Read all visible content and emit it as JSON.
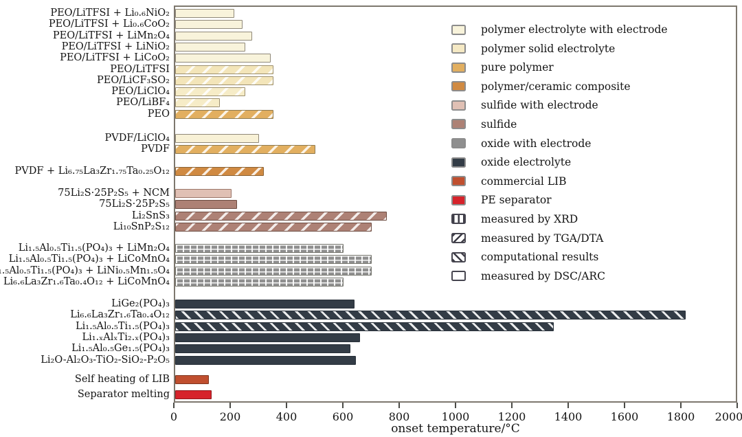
{
  "chart_data": {
    "type": "bar",
    "orientation": "horizontal",
    "title": "",
    "xlabel": "onset temperature/°C",
    "xlim": [
      0,
      2000
    ],
    "xticks": [
      "0",
      "200",
      "400",
      "600",
      "800",
      "1000",
      "1200",
      "1400",
      "1600",
      "1800",
      "2000"
    ],
    "grid": false,
    "legend_position": "upper right",
    "pattern_meaning": {
      "dsc": "measured by DSC/ARC",
      "xrd": "measured by XRD",
      "tga": "measured by TGA/DTA",
      "comp": "computational results"
    },
    "legend": [
      {
        "label": "polymer electrolyte with electrode",
        "type": "color",
        "color": "#F8F3DB"
      },
      {
        "label": "polymer solid electrolyte",
        "type": "color",
        "color": "#F5E9C4"
      },
      {
        "label": "pure polymer",
        "type": "color",
        "color": "#E2AF60"
      },
      {
        "label": "polymer/ceramic composite",
        "type": "color",
        "color": "#D08A42"
      },
      {
        "label": "sulfide with electrode",
        "type": "color",
        "color": "#E0C0B4"
      },
      {
        "label": "sulfide",
        "type": "color",
        "color": "#AD8175"
      },
      {
        "label": "oxide with electrode",
        "type": "color",
        "color": "#8F8F8F"
      },
      {
        "label": "oxide electrolyte",
        "type": "color",
        "color": "#333C46"
      },
      {
        "label": "commercial LIB",
        "type": "color",
        "color": "#C04F2F"
      },
      {
        "label": "PE separator",
        "type": "color",
        "color": "#D6232B"
      },
      {
        "label": "measured by XRD",
        "type": "pattern",
        "pattern": "xrd"
      },
      {
        "label": "measured by TGA/DTA",
        "type": "pattern",
        "pattern": "tga"
      },
      {
        "label": "computational results",
        "type": "pattern",
        "pattern": "comp"
      },
      {
        "label": "measured by DSC/ARC",
        "type": "pattern",
        "pattern": "dsc"
      }
    ],
    "bars": [
      {
        "label": "PEO/LiTFSI + Li₀.₆NiO₂",
        "value": 210,
        "category": "polymer electrolyte with electrode",
        "pattern": "dsc",
        "fill": "#F8F3DB",
        "border": "#8F8878",
        "group": 0
      },
      {
        "label": "PEO/LiTFSI + Li₀.₆CoO₂",
        "value": 240,
        "category": "polymer electrolyte with electrode",
        "pattern": "dsc",
        "fill": "#F8F3DB",
        "border": "#8F8878",
        "group": 0
      },
      {
        "label": "PEO/LiTFSI + LiMn₂O₄",
        "value": 275,
        "category": "polymer electrolyte with electrode",
        "pattern": "dsc",
        "fill": "#F8F3DB",
        "border": "#8F8878",
        "group": 0
      },
      {
        "label": "PEO/LiTFSI + LiNiO₂",
        "value": 250,
        "category": "polymer electrolyte with electrode",
        "pattern": "dsc",
        "fill": "#F8F3DB",
        "border": "#8F8878",
        "group": 0
      },
      {
        "label": "PEO/LiTFSI + LiCoO₂",
        "value": 340,
        "category": "polymer electrolyte with electrode",
        "pattern": "dsc",
        "fill": "#F8F3DB",
        "border": "#8F8878",
        "group": 0
      },
      {
        "label": "PEO/LiTFSI",
        "value": 350,
        "category": "polymer solid electrolyte",
        "pattern": "tga",
        "fill": "#F3E5B9",
        "border": "#9C8F6E",
        "group": 0
      },
      {
        "label": "PEO/LiCF₃SO₂",
        "value": 350,
        "category": "polymer solid electrolyte",
        "pattern": "tga",
        "fill": "#F3E5B9",
        "border": "#9C8F6E",
        "group": 0
      },
      {
        "label": "PEO/LiClO₄",
        "value": 250,
        "category": "polymer solid electrolyte",
        "pattern": "tga",
        "fill": "#F6ECC7",
        "border": "#9C8F6E",
        "group": 0
      },
      {
        "label": "PEO/LiBF₄",
        "value": 160,
        "category": "polymer solid electrolyte",
        "pattern": "tga",
        "fill": "#F6ECC7",
        "border": "#9C8F6E",
        "group": 0
      },
      {
        "label": "PEO",
        "value": 350,
        "category": "pure polymer",
        "pattern": "tga",
        "fill": "#E2AF60",
        "border": "#8D7A50",
        "group": 0
      },
      {
        "label": "PVDF/LiClO₄",
        "value": 300,
        "category": "polymer solid electrolyte",
        "pattern": "dsc",
        "fill": "#F8F1D6",
        "border": "#8F8878",
        "group": 1
      },
      {
        "label": "PVDF",
        "value": 500,
        "category": "pure polymer",
        "pattern": "tga",
        "fill": "#E2AF60",
        "border": "#8D7A50",
        "group": 1
      },
      {
        "label": "PVDF + Li₆.₇₅La₃Zr₁.₇₅Ta₀.₂₅O₁₂",
        "value": 315,
        "category": "polymer/ceramic composite",
        "pattern": "tga",
        "fill": "#D08A42",
        "border": "#8A6234",
        "group": 2
      },
      {
        "label": "75Li₂S·25P₂S₅ + NCM",
        "value": 200,
        "category": "sulfide with electrode",
        "pattern": "dsc",
        "fill": "#E0C0B4",
        "border": "#9B7668",
        "group": 3
      },
      {
        "label": "75Li₂S·25P₂S₅",
        "value": 220,
        "category": "sulfide",
        "pattern": "dsc",
        "fill": "#AD8175",
        "border": "#6D4C42",
        "group": 3
      },
      {
        "label": "Li₂SnS₃",
        "value": 755,
        "category": "sulfide",
        "pattern": "tga",
        "fill": "#AD8175",
        "border": "#6D4C42",
        "group": 3
      },
      {
        "label": "Li₁₀SnP₂S₁₂",
        "value": 700,
        "category": "sulfide",
        "pattern": "tga",
        "fill": "#AD8175",
        "border": "#6D4C42",
        "group": 3
      },
      {
        "label": "Li₁.₅Al₀.₅Ti₁.₅(PO₄)₃ + LiMn₂O₄",
        "value": 600,
        "category": "oxide with electrode",
        "pattern": "xrd",
        "fill": "#8F8F8F",
        "border": "#74746C",
        "group": 4
      },
      {
        "label": "Li₁.₅Al₀.₅Ti₁.₅(PO₄)₃ + LiCoMnO₄",
        "value": 700,
        "category": "oxide with electrode",
        "pattern": "xrd",
        "fill": "#8F8F8F",
        "border": "#74746C",
        "group": 4
      },
      {
        "label": "Li₁.₅Al₀.₅Ti₁.₅(PO₄)₃ + LiNi₀.₅Mn₁.₅O₄",
        "value": 700,
        "category": "oxide with electrode",
        "pattern": "xrd",
        "fill": "#8F8F8F",
        "border": "#74746C",
        "group": 4
      },
      {
        "label": "Li₆.₆La₃Zr₁.₆Ta₀.₄O₁₂ + LiCoMnO₄",
        "value": 600,
        "category": "oxide with electrode",
        "pattern": "xrd",
        "fill": "#8F8F8F",
        "border": "#74746C",
        "group": 4
      },
      {
        "label": "LiGe₂(PO₄)₃",
        "value": 640,
        "category": "oxide electrolyte",
        "pattern": "dsc",
        "fill": "#333C46",
        "border": "#272F38",
        "group": 5
      },
      {
        "label": "Li₆.₆La₃Zr₁.₆Ta₀.₄O₁₂",
        "value": 1820,
        "category": "oxide electrolyte",
        "pattern": "comp",
        "fill": "#333C46",
        "border": "#272F38",
        "group": 5
      },
      {
        "label": "Li₁.₅Al₀.₅Ti₁.₅(PO₄)₃",
        "value": 1350,
        "category": "oxide electrolyte",
        "pattern": "comp",
        "fill": "#333C46",
        "border": "#272F38",
        "group": 5
      },
      {
        "label": "Li₁.ₓAlₓTi₂.ₓ(PO₄)₃",
        "value": 660,
        "category": "oxide electrolyte",
        "pattern": "dsc",
        "fill": "#333C46",
        "border": "#272F38",
        "group": 5
      },
      {
        "label": "Li₁.₅Al₀.₅Ge₁.₅(PO₄)₃",
        "value": 625,
        "category": "oxide electrolyte",
        "pattern": "dsc",
        "fill": "#333C46",
        "border": "#272F38",
        "group": 5
      },
      {
        "label": "Li₂O-Al₂O₃-TiO₂-SiO₂-P₂O₅",
        "value": 645,
        "category": "oxide electrolyte",
        "pattern": "dsc",
        "fill": "#333C46",
        "border": "#272F38",
        "group": 5
      },
      {
        "label": "Self heating of LIB",
        "value": 120,
        "category": "commercial LIB",
        "pattern": "dsc",
        "fill": "#C04F2F",
        "border": "#7E3620",
        "group": 6
      },
      {
        "label": "Separator melting",
        "value": 130,
        "category": "PE separator",
        "pattern": "dsc",
        "fill": "#D6232B",
        "border": "#8F191D",
        "group": 6
      }
    ]
  }
}
